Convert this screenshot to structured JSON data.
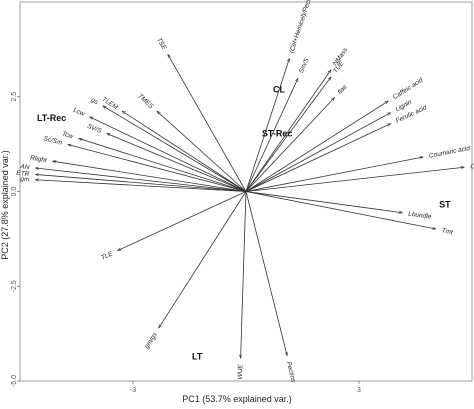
{
  "chart_data": {
    "type": "scatter",
    "subtype": "pca-biplot",
    "xlabel": "PC1 (53.7% explained var.)",
    "ylabel": "PC2 (27.8% explained var.)",
    "xlim": [
      -5.0,
      5.0
    ],
    "ylim": [
      -5.0,
      5.0
    ],
    "x_ticks": [
      {
        "value": -2.5,
        "label": "-3"
      },
      {
        "value": 2.5,
        "label": "3"
      }
    ],
    "y_ticks": [
      {
        "value": 2.5,
        "label": "2.5"
      },
      {
        "value": 0.0,
        "label": "0.0"
      },
      {
        "value": -2.5,
        "label": "-2.5"
      },
      {
        "value": -5.0,
        "label": "-5.0"
      }
    ],
    "grid": false,
    "origin": [
      0,
      0
    ],
    "loadings": [
      {
        "label": "TSE",
        "x": -1.73,
        "y": 3.62
      },
      {
        "label": "gs",
        "x": -3.17,
        "y": 2.26
      },
      {
        "label": "TLEM",
        "x": -2.74,
        "y": 2.12
      },
      {
        "label": "TMES",
        "x": -1.97,
        "y": 2.12
      },
      {
        "label": "Lcw",
        "x": -3.46,
        "y": 1.97
      },
      {
        "label": "SV/S",
        "x": -3.08,
        "y": 1.53
      },
      {
        "label": "Tcw",
        "x": -3.7,
        "y": 1.4
      },
      {
        "label": "Sc/Sm",
        "x": -3.94,
        "y": 1.24
      },
      {
        "label": "Rlight",
        "x": -4.28,
        "y": 0.8
      },
      {
        "label": "AN",
        "x": -4.66,
        "y": 0.62
      },
      {
        "label": "ETR",
        "x": -4.66,
        "y": 0.45
      },
      {
        "label": "gm",
        "x": -4.66,
        "y": 0.31
      },
      {
        "label": "TLE",
        "x": -2.84,
        "y": -1.56
      },
      {
        "label": "gm/gs",
        "x": -1.93,
        "y": -3.6
      },
      {
        "label": "WUE",
        "x": -0.12,
        "y": -4.4
      },
      {
        "label": "Pectins",
        "x": 0.91,
        "y": -4.33
      },
      {
        "label": "(Cel+Hemicel)/Pectins",
        "x": 0.96,
        "y": 3.51
      },
      {
        "label": "Sm/S",
        "x": 1.15,
        "y": 2.99
      },
      {
        "label": "NMass",
        "x": 1.88,
        "y": 3.21
      },
      {
        "label": "TUE",
        "x": 1.88,
        "y": 3.02
      },
      {
        "label": "fias",
        "x": 1.96,
        "y": 2.48
      },
      {
        "label": "Caffeic acid",
        "x": 3.15,
        "y": 2.39
      },
      {
        "label": "Lignin",
        "x": 3.2,
        "y": 2.08
      },
      {
        "label": "Ferulic acid",
        "x": 3.2,
        "y": 1.79
      },
      {
        "label": "Coumaric acid",
        "x": 3.92,
        "y": 0.91
      },
      {
        "label": "Cell wall phenols",
        "x": 4.83,
        "y": 0.64
      },
      {
        "label": "Lbundle",
        "x": 3.46,
        "y": -0.56
      },
      {
        "label": "Tmt",
        "x": 4.2,
        "y": -0.99
      }
    ],
    "groups": [
      {
        "label": "LT-Rec",
        "x": -4.3,
        "y": 1.86
      },
      {
        "label": "CL",
        "x": 0.73,
        "y": 2.61
      },
      {
        "label": "ST-Rec",
        "x": 0.69,
        "y": 1.45
      },
      {
        "label": "ST",
        "x": 4.4,
        "y": -0.42
      },
      {
        "label": "LT",
        "x": -1.08,
        "y": -4.43
      }
    ]
  }
}
